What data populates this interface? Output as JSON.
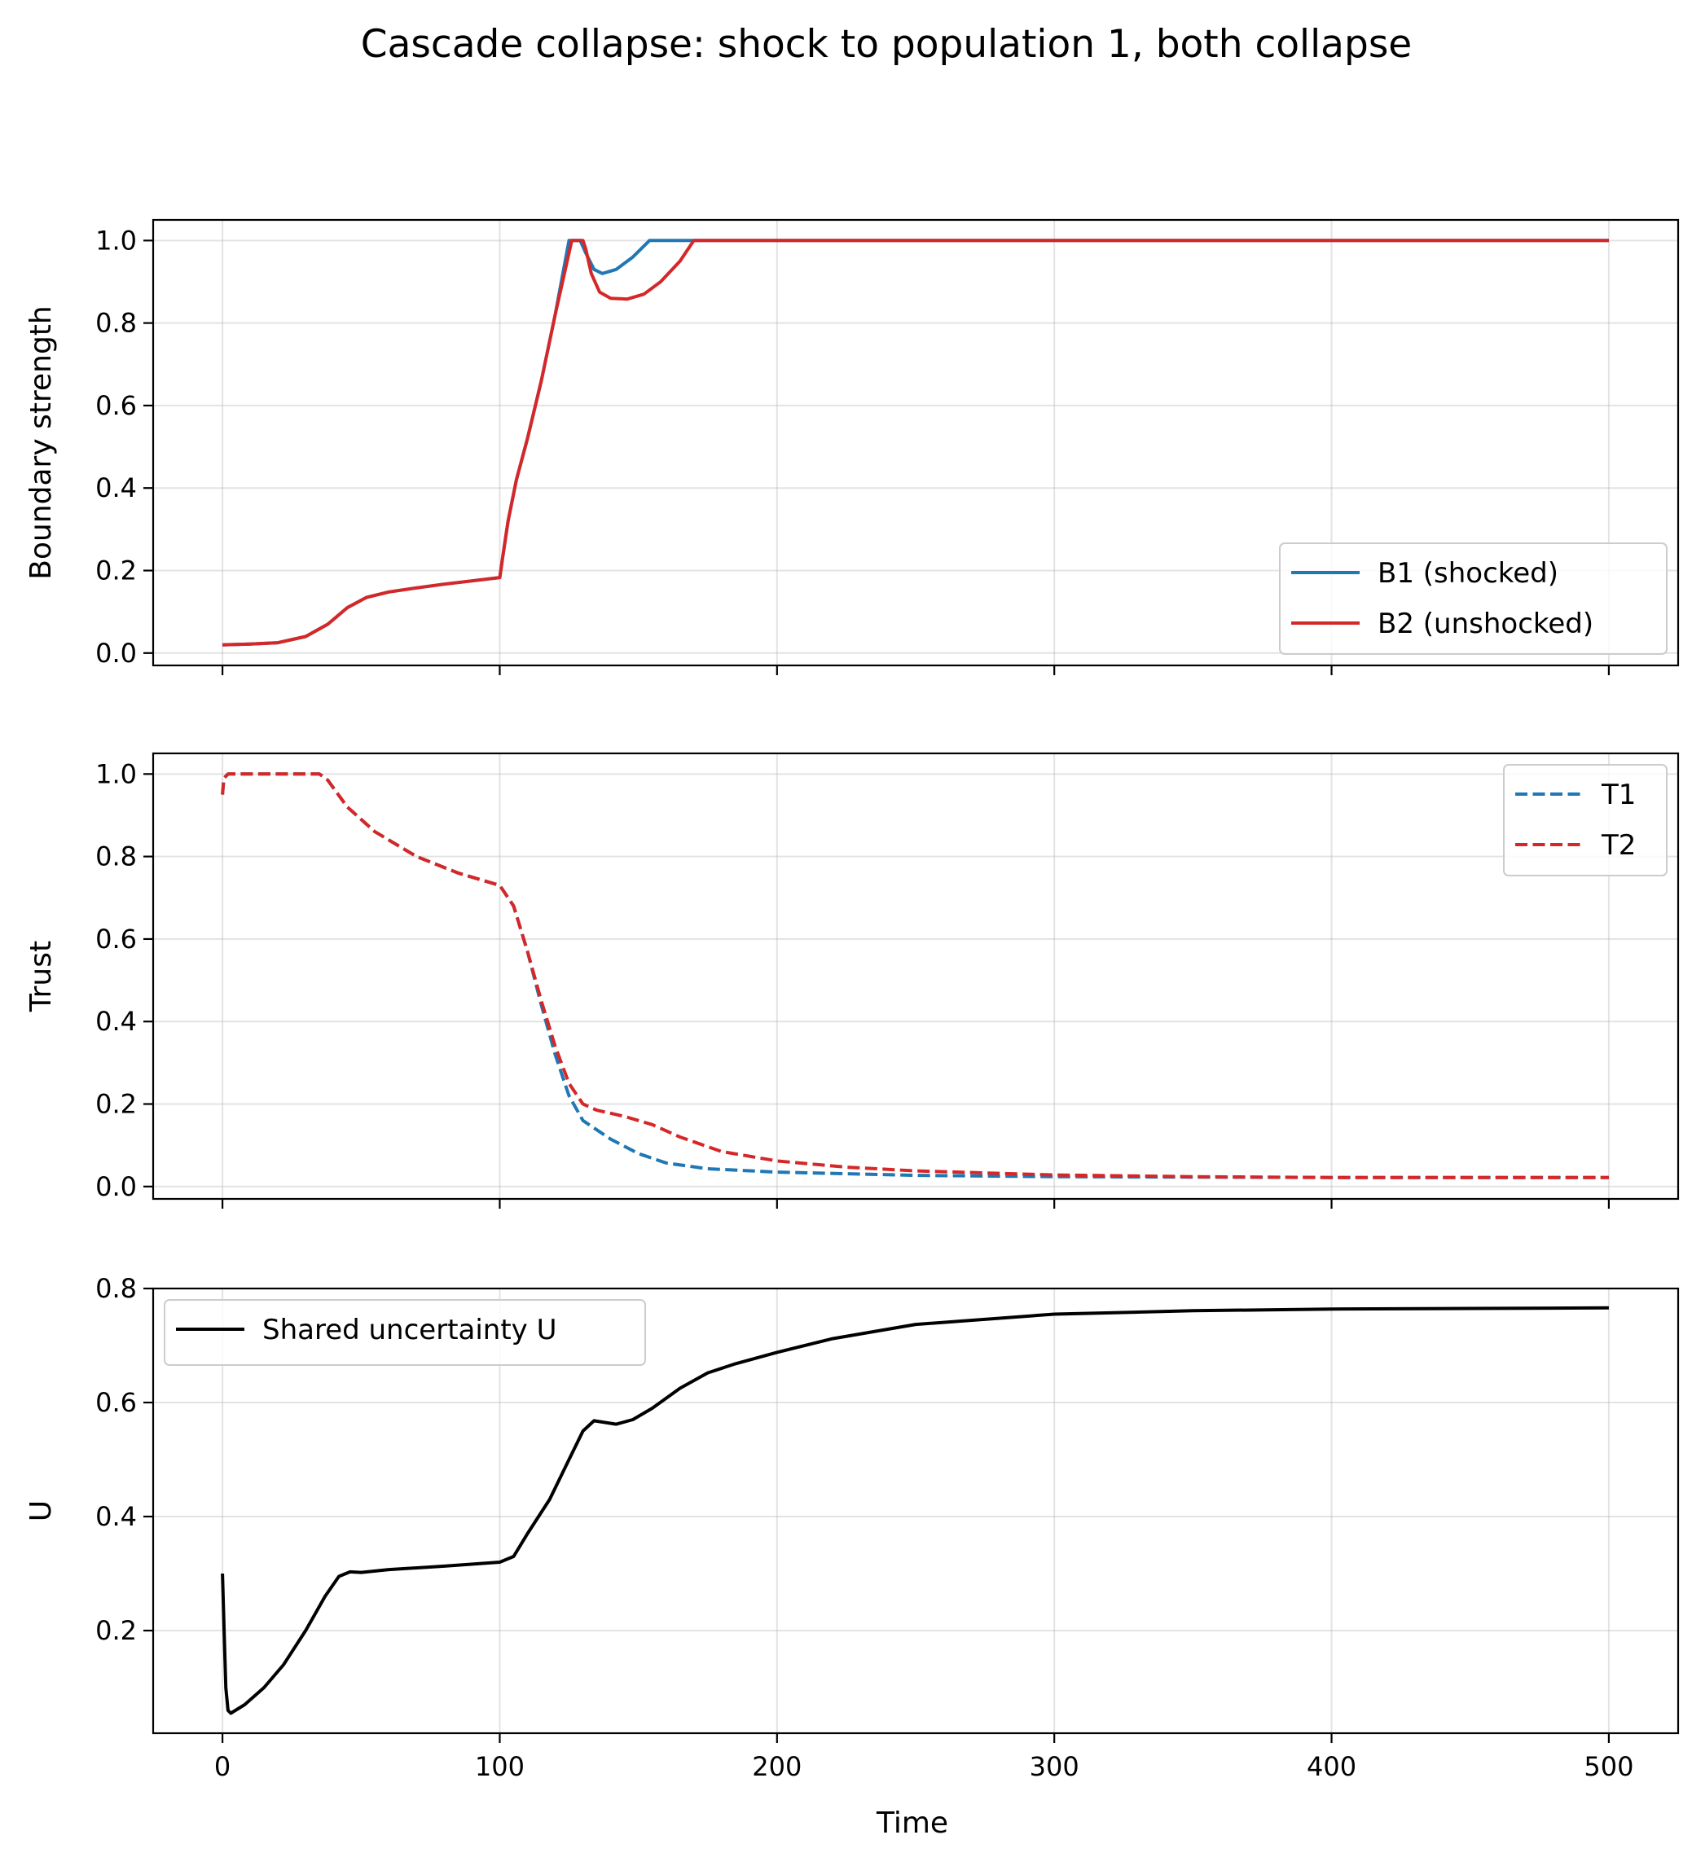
{
  "figure": {
    "title": "Cascade collapse: shock to population 1, both collapse",
    "xlabel": "Time"
  },
  "chart_data": [
    {
      "type": "line",
      "ylabel": "Boundary strength",
      "xlim": [
        -25,
        525
      ],
      "ylim": [
        -0.03,
        1.05
      ],
      "xticks": [
        0,
        100,
        200,
        300,
        400,
        500
      ],
      "xtick_labels_visible": false,
      "yticks": [
        0.0,
        0.2,
        0.4,
        0.6,
        0.8,
        1.0
      ],
      "ytick_labels": [
        "0.0",
        "0.2",
        "0.4",
        "0.6",
        "0.8",
        "1.0"
      ],
      "grid": true,
      "legend_position": "lower-right",
      "series": [
        {
          "name": "B1 (shocked)",
          "color": "#1f77b4",
          "style": "solid",
          "points": [
            [
              0,
              0.02
            ],
            [
              10,
              0.022
            ],
            [
              20,
              0.025
            ],
            [
              30,
              0.04
            ],
            [
              38,
              0.07
            ],
            [
              45,
              0.11
            ],
            [
              52,
              0.135
            ],
            [
              60,
              0.148
            ],
            [
              70,
              0.158
            ],
            [
              80,
              0.167
            ],
            [
              90,
              0.175
            ],
            [
              100,
              0.183
            ],
            [
              101,
              0.23
            ],
            [
              103,
              0.32
            ],
            [
              106,
              0.42
            ],
            [
              110,
              0.52
            ],
            [
              115,
              0.66
            ],
            [
              120,
              0.82
            ],
            [
              125,
              1.0
            ],
            [
              129,
              1.0
            ],
            [
              131,
              0.97
            ],
            [
              134,
              0.93
            ],
            [
              137,
              0.92
            ],
            [
              142,
              0.93
            ],
            [
              148,
              0.96
            ],
            [
              154,
              1.0
            ],
            [
              160,
              1.0
            ],
            [
              200,
              1.0
            ],
            [
              300,
              1.0
            ],
            [
              400,
              1.0
            ],
            [
              500,
              1.0
            ]
          ]
        },
        {
          "name": "B2 (unshocked)",
          "color": "#d62728",
          "style": "solid",
          "points": [
            [
              0,
              0.02
            ],
            [
              10,
              0.022
            ],
            [
              20,
              0.025
            ],
            [
              30,
              0.04
            ],
            [
              38,
              0.07
            ],
            [
              45,
              0.11
            ],
            [
              52,
              0.135
            ],
            [
              60,
              0.148
            ],
            [
              70,
              0.158
            ],
            [
              80,
              0.167
            ],
            [
              90,
              0.175
            ],
            [
              100,
              0.183
            ],
            [
              101,
              0.23
            ],
            [
              103,
              0.32
            ],
            [
              106,
              0.42
            ],
            [
              110,
              0.52
            ],
            [
              115,
              0.66
            ],
            [
              120,
              0.82
            ],
            [
              126,
              1.0
            ],
            [
              130,
              1.0
            ],
            [
              131,
              0.98
            ],
            [
              133,
              0.92
            ],
            [
              136,
              0.875
            ],
            [
              140,
              0.86
            ],
            [
              146,
              0.858
            ],
            [
              152,
              0.87
            ],
            [
              158,
              0.9
            ],
            [
              165,
              0.95
            ],
            [
              170,
              1.0
            ],
            [
              200,
              1.0
            ],
            [
              300,
              1.0
            ],
            [
              400,
              1.0
            ],
            [
              500,
              1.0
            ]
          ]
        }
      ]
    },
    {
      "type": "line",
      "ylabel": "Trust",
      "xlim": [
        -25,
        525
      ],
      "ylim": [
        -0.03,
        1.05
      ],
      "xticks": [
        0,
        100,
        200,
        300,
        400,
        500
      ],
      "xtick_labels_visible": false,
      "yticks": [
        0.0,
        0.2,
        0.4,
        0.6,
        0.8,
        1.0
      ],
      "ytick_labels": [
        "0.0",
        "0.2",
        "0.4",
        "0.6",
        "0.8",
        "1.0"
      ],
      "grid": true,
      "legend_position": "upper-right",
      "series": [
        {
          "name": "T1",
          "color": "#1f77b4",
          "style": "dashed",
          "points": [
            [
              0,
              0.95
            ],
            [
              0.5,
              0.99
            ],
            [
              2,
              1.0
            ],
            [
              35,
              1.0
            ],
            [
              38,
              0.985
            ],
            [
              45,
              0.92
            ],
            [
              55,
              0.86
            ],
            [
              70,
              0.8
            ],
            [
              85,
              0.76
            ],
            [
              100,
              0.73
            ],
            [
              105,
              0.68
            ],
            [
              110,
              0.57
            ],
            [
              115,
              0.44
            ],
            [
              120,
              0.32
            ],
            [
              125,
              0.22
            ],
            [
              130,
              0.16
            ],
            [
              140,
              0.115
            ],
            [
              150,
              0.08
            ],
            [
              160,
              0.057
            ],
            [
              175,
              0.043
            ],
            [
              200,
              0.035
            ],
            [
              250,
              0.027
            ],
            [
              300,
              0.024
            ],
            [
              400,
              0.022
            ],
            [
              500,
              0.022
            ]
          ]
        },
        {
          "name": "T2",
          "color": "#d62728",
          "style": "dashed",
          "points": [
            [
              0,
              0.95
            ],
            [
              0.5,
              0.99
            ],
            [
              2,
              1.0
            ],
            [
              35,
              1.0
            ],
            [
              38,
              0.985
            ],
            [
              45,
              0.92
            ],
            [
              55,
              0.86
            ],
            [
              70,
              0.8
            ],
            [
              85,
              0.76
            ],
            [
              100,
              0.73
            ],
            [
              105,
              0.68
            ],
            [
              110,
              0.57
            ],
            [
              115,
              0.45
            ],
            [
              120,
              0.34
            ],
            [
              125,
              0.25
            ],
            [
              130,
              0.2
            ],
            [
              135,
              0.185
            ],
            [
              145,
              0.17
            ],
            [
              155,
              0.15
            ],
            [
              165,
              0.12
            ],
            [
              180,
              0.085
            ],
            [
              200,
              0.062
            ],
            [
              225,
              0.047
            ],
            [
              250,
              0.038
            ],
            [
              300,
              0.028
            ],
            [
              350,
              0.024
            ],
            [
              400,
              0.022
            ],
            [
              500,
              0.022
            ]
          ]
        }
      ]
    },
    {
      "type": "line",
      "ylabel": "U",
      "xlim": [
        -25,
        525
      ],
      "ylim": [
        0.02,
        0.8
      ],
      "xticks": [
        0,
        100,
        200,
        300,
        400,
        500
      ],
      "xtick_labels": [
        "0",
        "100",
        "200",
        "300",
        "400",
        "500"
      ],
      "xtick_labels_visible": true,
      "yticks": [
        0.2,
        0.4,
        0.6,
        0.8
      ],
      "ytick_labels": [
        "0.2",
        "0.4",
        "0.6",
        "0.8"
      ],
      "grid": true,
      "legend_position": "upper-left",
      "series": [
        {
          "name": "Shared uncertainty U",
          "color": "#000000",
          "style": "solid",
          "points": [
            [
              0,
              0.3
            ],
            [
              0.6,
              0.2
            ],
            [
              1.2,
              0.1
            ],
            [
              2,
              0.06
            ],
            [
              3,
              0.055
            ],
            [
              8,
              0.07
            ],
            [
              15,
              0.1
            ],
            [
              22,
              0.14
            ],
            [
              30,
              0.2
            ],
            [
              37,
              0.26
            ],
            [
              42,
              0.295
            ],
            [
              46,
              0.303
            ],
            [
              50,
              0.302
            ],
            [
              60,
              0.307
            ],
            [
              80,
              0.313
            ],
            [
              100,
              0.32
            ],
            [
              105,
              0.33
            ],
            [
              110,
              0.37
            ],
            [
              118,
              0.43
            ],
            [
              125,
              0.5
            ],
            [
              130,
              0.55
            ],
            [
              134,
              0.568
            ],
            [
              138,
              0.565
            ],
            [
              142,
              0.562
            ],
            [
              148,
              0.57
            ],
            [
              155,
              0.59
            ],
            [
              165,
              0.625
            ],
            [
              175,
              0.652
            ],
            [
              185,
              0.668
            ],
            [
              200,
              0.688
            ],
            [
              220,
              0.712
            ],
            [
              250,
              0.737
            ],
            [
              300,
              0.755
            ],
            [
              350,
              0.761
            ],
            [
              400,
              0.764
            ],
            [
              450,
              0.765
            ],
            [
              500,
              0.766
            ]
          ]
        }
      ]
    }
  ]
}
